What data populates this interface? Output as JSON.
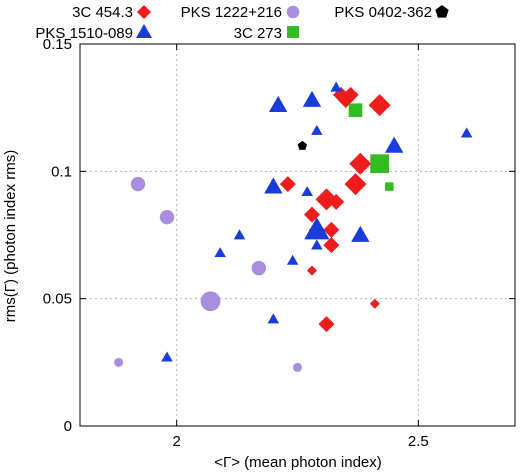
{
  "chart_data": {
    "type": "scatter",
    "xlabel": "<Γ> (mean photon index)",
    "ylabel": "rms(Γ) (photon index rms)",
    "xlim": [
      1.8,
      2.7
    ],
    "ylim": [
      0,
      0.15
    ],
    "x_ticks": [
      "2",
      "2.5"
    ],
    "y_ticks": [
      "0",
      "0.05",
      "0.1",
      "0.15"
    ],
    "grid": true,
    "legend_position": "top",
    "series": [
      {
        "name": "3C 454.3",
        "marker": "diamond",
        "color": "#ee1c1c",
        "points": [
          {
            "x": 2.23,
            "y": 0.095,
            "size": 2
          },
          {
            "x": 2.28,
            "y": 0.061,
            "size": 1
          },
          {
            "x": 2.28,
            "y": 0.083,
            "size": 2
          },
          {
            "x": 2.29,
            "y": 0.077,
            "size": 2
          },
          {
            "x": 2.31,
            "y": 0.089,
            "size": 3
          },
          {
            "x": 2.31,
            "y": 0.04,
            "size": 2
          },
          {
            "x": 2.32,
            "y": 0.077,
            "size": 2
          },
          {
            "x": 2.32,
            "y": 0.071,
            "size": 2
          },
          {
            "x": 2.33,
            "y": 0.088,
            "size": 2
          },
          {
            "x": 2.34,
            "y": 0.13,
            "size": 2
          },
          {
            "x": 2.35,
            "y": 0.128,
            "size": 2
          },
          {
            "x": 2.36,
            "y": 0.13,
            "size": 2
          },
          {
            "x": 2.37,
            "y": 0.095,
            "size": 3
          },
          {
            "x": 2.38,
            "y": 0.103,
            "size": 3
          },
          {
            "x": 2.41,
            "y": 0.048,
            "size": 1
          },
          {
            "x": 2.42,
            "y": 0.126,
            "size": 3
          }
        ]
      },
      {
        "name": "PKS 1510-089",
        "marker": "triangle",
        "color": "#1b3cdc",
        "points": [
          {
            "x": 1.98,
            "y": 0.027,
            "size": 1
          },
          {
            "x": 2.09,
            "y": 0.068,
            "size": 1
          },
          {
            "x": 2.13,
            "y": 0.075,
            "size": 1
          },
          {
            "x": 2.2,
            "y": 0.042,
            "size": 1
          },
          {
            "x": 2.2,
            "y": 0.094,
            "size": 2
          },
          {
            "x": 2.21,
            "y": 0.126,
            "size": 2
          },
          {
            "x": 2.24,
            "y": 0.065,
            "size": 1
          },
          {
            "x": 2.27,
            "y": 0.092,
            "size": 1
          },
          {
            "x": 2.28,
            "y": 0.128,
            "size": 2
          },
          {
            "x": 2.29,
            "y": 0.077,
            "size": 3
          },
          {
            "x": 2.29,
            "y": 0.116,
            "size": 1
          },
          {
            "x": 2.29,
            "y": 0.071,
            "size": 1
          },
          {
            "x": 2.33,
            "y": 0.133,
            "size": 1
          },
          {
            "x": 2.38,
            "y": 0.075,
            "size": 2
          },
          {
            "x": 2.45,
            "y": 0.11,
            "size": 2
          },
          {
            "x": 2.6,
            "y": 0.115,
            "size": 1
          }
        ]
      },
      {
        "name": "PKS 1222+216",
        "marker": "circle",
        "color": "#a98ee0",
        "points": [
          {
            "x": 1.88,
            "y": 0.025,
            "size": 1
          },
          {
            "x": 1.92,
            "y": 0.095,
            "size": 2
          },
          {
            "x": 1.98,
            "y": 0.082,
            "size": 2
          },
          {
            "x": 2.07,
            "y": 0.049,
            "size": 3
          },
          {
            "x": 2.17,
            "y": 0.062,
            "size": 2
          },
          {
            "x": 2.25,
            "y": 0.023,
            "size": 1
          }
        ]
      },
      {
        "name": "3C 273",
        "marker": "square",
        "color": "#33bb22",
        "points": [
          {
            "x": 2.37,
            "y": 0.124,
            "size": 2
          },
          {
            "x": 2.42,
            "y": 0.103,
            "size": 3
          },
          {
            "x": 2.44,
            "y": 0.094,
            "size": 1
          }
        ]
      },
      {
        "name": "PKS 0402-362",
        "marker": "pentagon",
        "color": "#000000",
        "points": [
          {
            "x": 2.26,
            "y": 0.11,
            "size": 1
          }
        ]
      }
    ],
    "legend": [
      {
        "label": "3C 454.3",
        "series": 0
      },
      {
        "label": "PKS 1222+216",
        "series": 2
      },
      {
        "label": "PKS 0402-362",
        "series": 4
      },
      {
        "label": "PKS 1510-089",
        "series": 1
      },
      {
        "label": "3C 273",
        "series": 3
      }
    ]
  }
}
